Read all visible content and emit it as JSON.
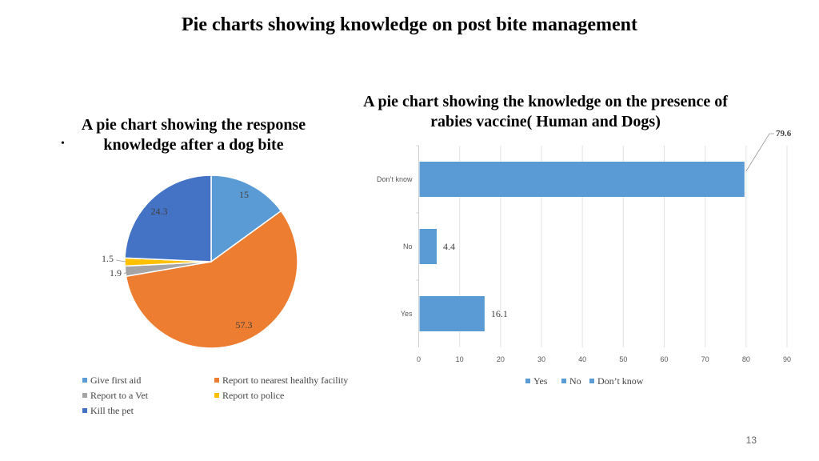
{
  "slide": {
    "title": "Pie charts showing knowledge on post bite management",
    "bullet": "•",
    "page_number": "13"
  },
  "chart_data": [
    {
      "type": "pie",
      "title": "A pie chart showing the response knowledge after a dog bite",
      "slices": [
        {
          "label": "Give first aid",
          "value": 15,
          "data_label": "15",
          "color": "#5B9BD5"
        },
        {
          "label": "Report to nearest healthy facility",
          "value": 57.3,
          "data_label": "57.3",
          "color": "#ED7D31"
        },
        {
          "label": "Report to a Vet",
          "value": 1.9,
          "data_label": "1.9",
          "color": "#A5A5A5"
        },
        {
          "label": "Report to police",
          "value": 1.5,
          "data_label": "1.5",
          "color": "#FFC000"
        },
        {
          "label": "Kill the pet",
          "value": 24.3,
          "data_label": "24.3",
          "color": "#4472C4"
        }
      ],
      "legend": "bottom"
    },
    {
      "type": "bar",
      "orientation": "horizontal",
      "title": "A pie chart showing the knowledge on the presence of rabies vaccine( Human and Dogs)",
      "categories": [
        "Yes",
        "No",
        "Don’t  know"
      ],
      "values": [
        16.1,
        4.4,
        79.6
      ],
      "data_labels": [
        "16.1",
        "4.4",
        "79.6"
      ],
      "xlim": [
        0,
        90
      ],
      "xticks": [
        "0",
        "10",
        "20",
        "30",
        "40",
        "50",
        "60",
        "70",
        "80",
        "90"
      ],
      "grid": true,
      "bar_color": "#5B9BD5",
      "legend": "bottom",
      "legend_entries": [
        "Yes",
        "No",
        "Don’t  know"
      ]
    }
  ]
}
